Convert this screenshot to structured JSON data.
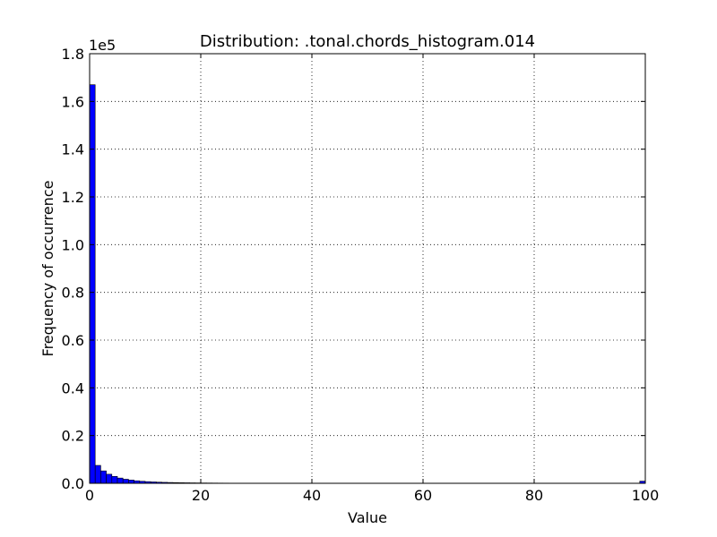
{
  "chart_data": {
    "type": "bar",
    "title": "Distribution: .tonal.chords_histogram.014",
    "xlabel": "Value",
    "ylabel": "Frequency of occurrence",
    "y_offset_label": "1e5",
    "xlim": [
      0,
      100
    ],
    "ylim": [
      0,
      180000
    ],
    "x_ticks": [
      0,
      20,
      40,
      60,
      80,
      100
    ],
    "x_tick_labels": [
      "0",
      "20",
      "40",
      "60",
      "80",
      "100"
    ],
    "y_ticks": [
      0,
      20000,
      40000,
      60000,
      80000,
      100000,
      120000,
      140000,
      160000,
      180000
    ],
    "y_tick_labels": [
      "0.0",
      "0.2",
      "0.4",
      "0.6",
      "0.8",
      "1.0",
      "1.2",
      "1.4",
      "1.6",
      "1.8"
    ],
    "grid": true,
    "bar_color": "#0000ff",
    "bins": {
      "start": 0,
      "width": 1,
      "values": [
        167000,
        7500,
        5200,
        3800,
        2900,
        2200,
        1700,
        1350,
        1050,
        850,
        700,
        580,
        480,
        400,
        340,
        290,
        250,
        215,
        185,
        160,
        140,
        122,
        106,
        93,
        82,
        72,
        64,
        57,
        51,
        46,
        41,
        37,
        34,
        31,
        28,
        26,
        24,
        22,
        20,
        19,
        18,
        17,
        16,
        15,
        14,
        13,
        12,
        12,
        11,
        11,
        10,
        10,
        9,
        9,
        9,
        8,
        8,
        8,
        7,
        7,
        7,
        7,
        6,
        6,
        6,
        6,
        6,
        5,
        5,
        5,
        5,
        5,
        5,
        5,
        4,
        4,
        4,
        4,
        4,
        4,
        4,
        4,
        4,
        4,
        3,
        3,
        3,
        3,
        3,
        3,
        3,
        3,
        3,
        3,
        3,
        3,
        3,
        3,
        3,
        900
      ]
    }
  }
}
